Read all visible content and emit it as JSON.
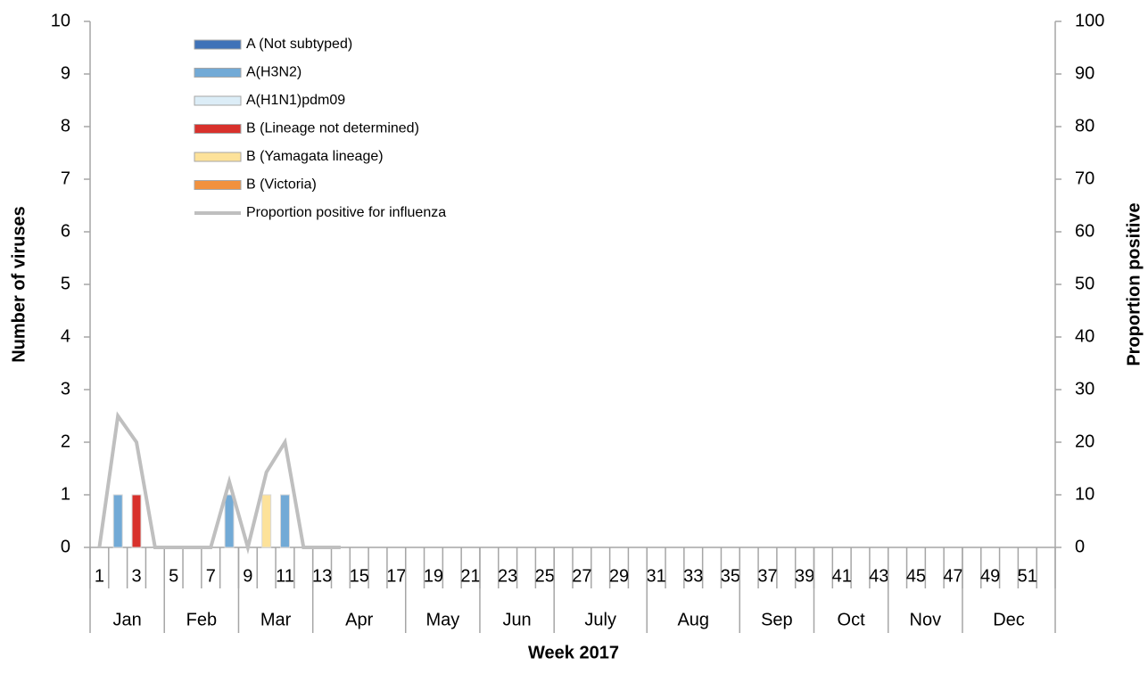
{
  "chart_data": {
    "type": "bar",
    "x_label": "Week 2017",
    "y_label": "Number of viruses",
    "y2_label": "Proportion positive",
    "categories": [
      "1",
      null,
      "3",
      null,
      "5",
      null,
      "7",
      null,
      "9",
      null,
      "11",
      null,
      "13",
      null,
      "15",
      null,
      "17",
      null,
      "19",
      null,
      "21",
      null,
      "23",
      null,
      "25",
      null,
      "27",
      null,
      "29",
      null,
      "31",
      null,
      "33",
      null,
      "35",
      null,
      "37",
      null,
      "39",
      null,
      "41",
      null,
      "43",
      null,
      "45",
      null,
      "47",
      null,
      "49",
      null,
      "51",
      null
    ],
    "month_labels": [
      "Jan",
      "Feb",
      "Mar",
      "Apr",
      "May",
      "Jun",
      "July",
      "Aug",
      "Sep",
      "Oct",
      "Nov",
      "Dec"
    ],
    "ylim": [
      0,
      10
    ],
    "yticks": [
      0,
      1,
      2,
      3,
      4,
      5,
      6,
      7,
      8,
      9,
      10
    ],
    "y2lim": [
      0,
      100
    ],
    "y2ticks": [
      0,
      10,
      20,
      30,
      40,
      50,
      60,
      70,
      80,
      90,
      100
    ],
    "series": [
      {
        "name": "A (Not subtyped)",
        "color": "#3f72b8",
        "values": [
          0,
          0,
          0,
          0,
          0,
          0,
          0,
          0,
          0,
          0,
          0,
          0,
          0,
          0,
          0,
          0,
          0,
          0,
          0,
          0,
          0,
          0,
          0,
          0,
          0,
          0,
          0,
          0,
          0,
          0,
          0,
          0,
          0,
          0,
          0,
          0,
          0,
          0,
          0,
          0,
          0,
          0,
          0,
          0,
          0,
          0,
          0,
          0,
          0,
          0,
          0,
          0
        ]
      },
      {
        "name": "A(H3N2)",
        "color": "#72aad6",
        "values": [
          0,
          1,
          0,
          0,
          0,
          0,
          0,
          1,
          0,
          0,
          1,
          0,
          0,
          0,
          0,
          0,
          0,
          0,
          0,
          0,
          0,
          0,
          0,
          0,
          0,
          0,
          0,
          0,
          0,
          0,
          0,
          0,
          0,
          0,
          0,
          0,
          0,
          0,
          0,
          0,
          0,
          0,
          0,
          0,
          0,
          0,
          0,
          0,
          0,
          0,
          0,
          0
        ]
      },
      {
        "name": "A(H1N1)pdm09",
        "color": "#dcedf7",
        "values": [
          0,
          0,
          0,
          0,
          0,
          0,
          0,
          0,
          0,
          0,
          0,
          0,
          0,
          0,
          0,
          0,
          0,
          0,
          0,
          0,
          0,
          0,
          0,
          0,
          0,
          0,
          0,
          0,
          0,
          0,
          0,
          0,
          0,
          0,
          0,
          0,
          0,
          0,
          0,
          0,
          0,
          0,
          0,
          0,
          0,
          0,
          0,
          0,
          0,
          0,
          0,
          0
        ]
      },
      {
        "name": "B (Lineage not determined)",
        "color": "#d8312c",
        "values": [
          0,
          0,
          1,
          0,
          0,
          0,
          0,
          0,
          0,
          0,
          0,
          0,
          0,
          0,
          0,
          0,
          0,
          0,
          0,
          0,
          0,
          0,
          0,
          0,
          0,
          0,
          0,
          0,
          0,
          0,
          0,
          0,
          0,
          0,
          0,
          0,
          0,
          0,
          0,
          0,
          0,
          0,
          0,
          0,
          0,
          0,
          0,
          0,
          0,
          0,
          0,
          0
        ]
      },
      {
        "name": "B (Yamagata lineage)",
        "color": "#fde29a",
        "values": [
          0,
          0,
          0,
          0,
          0,
          0,
          0,
          0,
          0,
          1,
          0,
          0,
          0,
          0,
          0,
          0,
          0,
          0,
          0,
          0,
          0,
          0,
          0,
          0,
          0,
          0,
          0,
          0,
          0,
          0,
          0,
          0,
          0,
          0,
          0,
          0,
          0,
          0,
          0,
          0,
          0,
          0,
          0,
          0,
          0,
          0,
          0,
          0,
          0,
          0,
          0,
          0
        ]
      },
      {
        "name": "B (Victoria)",
        "color": "#f1913e",
        "values": [
          0,
          0,
          0,
          0,
          0,
          0,
          0,
          0,
          0,
          0,
          0,
          0,
          0,
          0,
          0,
          0,
          0,
          0,
          0,
          0,
          0,
          0,
          0,
          0,
          0,
          0,
          0,
          0,
          0,
          0,
          0,
          0,
          0,
          0,
          0,
          0,
          0,
          0,
          0,
          0,
          0,
          0,
          0,
          0,
          0,
          0,
          0,
          0,
          0,
          0,
          0,
          0
        ]
      },
      {
        "name": "Proportion positive for influenza",
        "type": "line",
        "axis": "y2",
        "color": "#bfbfbf",
        "values": [
          0,
          25,
          20,
          0,
          0,
          0,
          0,
          12.5,
          0,
          14.3,
          20,
          0,
          0,
          0,
          null,
          null,
          null,
          null,
          null,
          null,
          null,
          null,
          null,
          null,
          null,
          null,
          null,
          null,
          null,
          null,
          null,
          null,
          null,
          null,
          null,
          null,
          null,
          null,
          null,
          null,
          null,
          null,
          null,
          null,
          null,
          null,
          null,
          null,
          null,
          null,
          null,
          null
        ]
      }
    ]
  }
}
